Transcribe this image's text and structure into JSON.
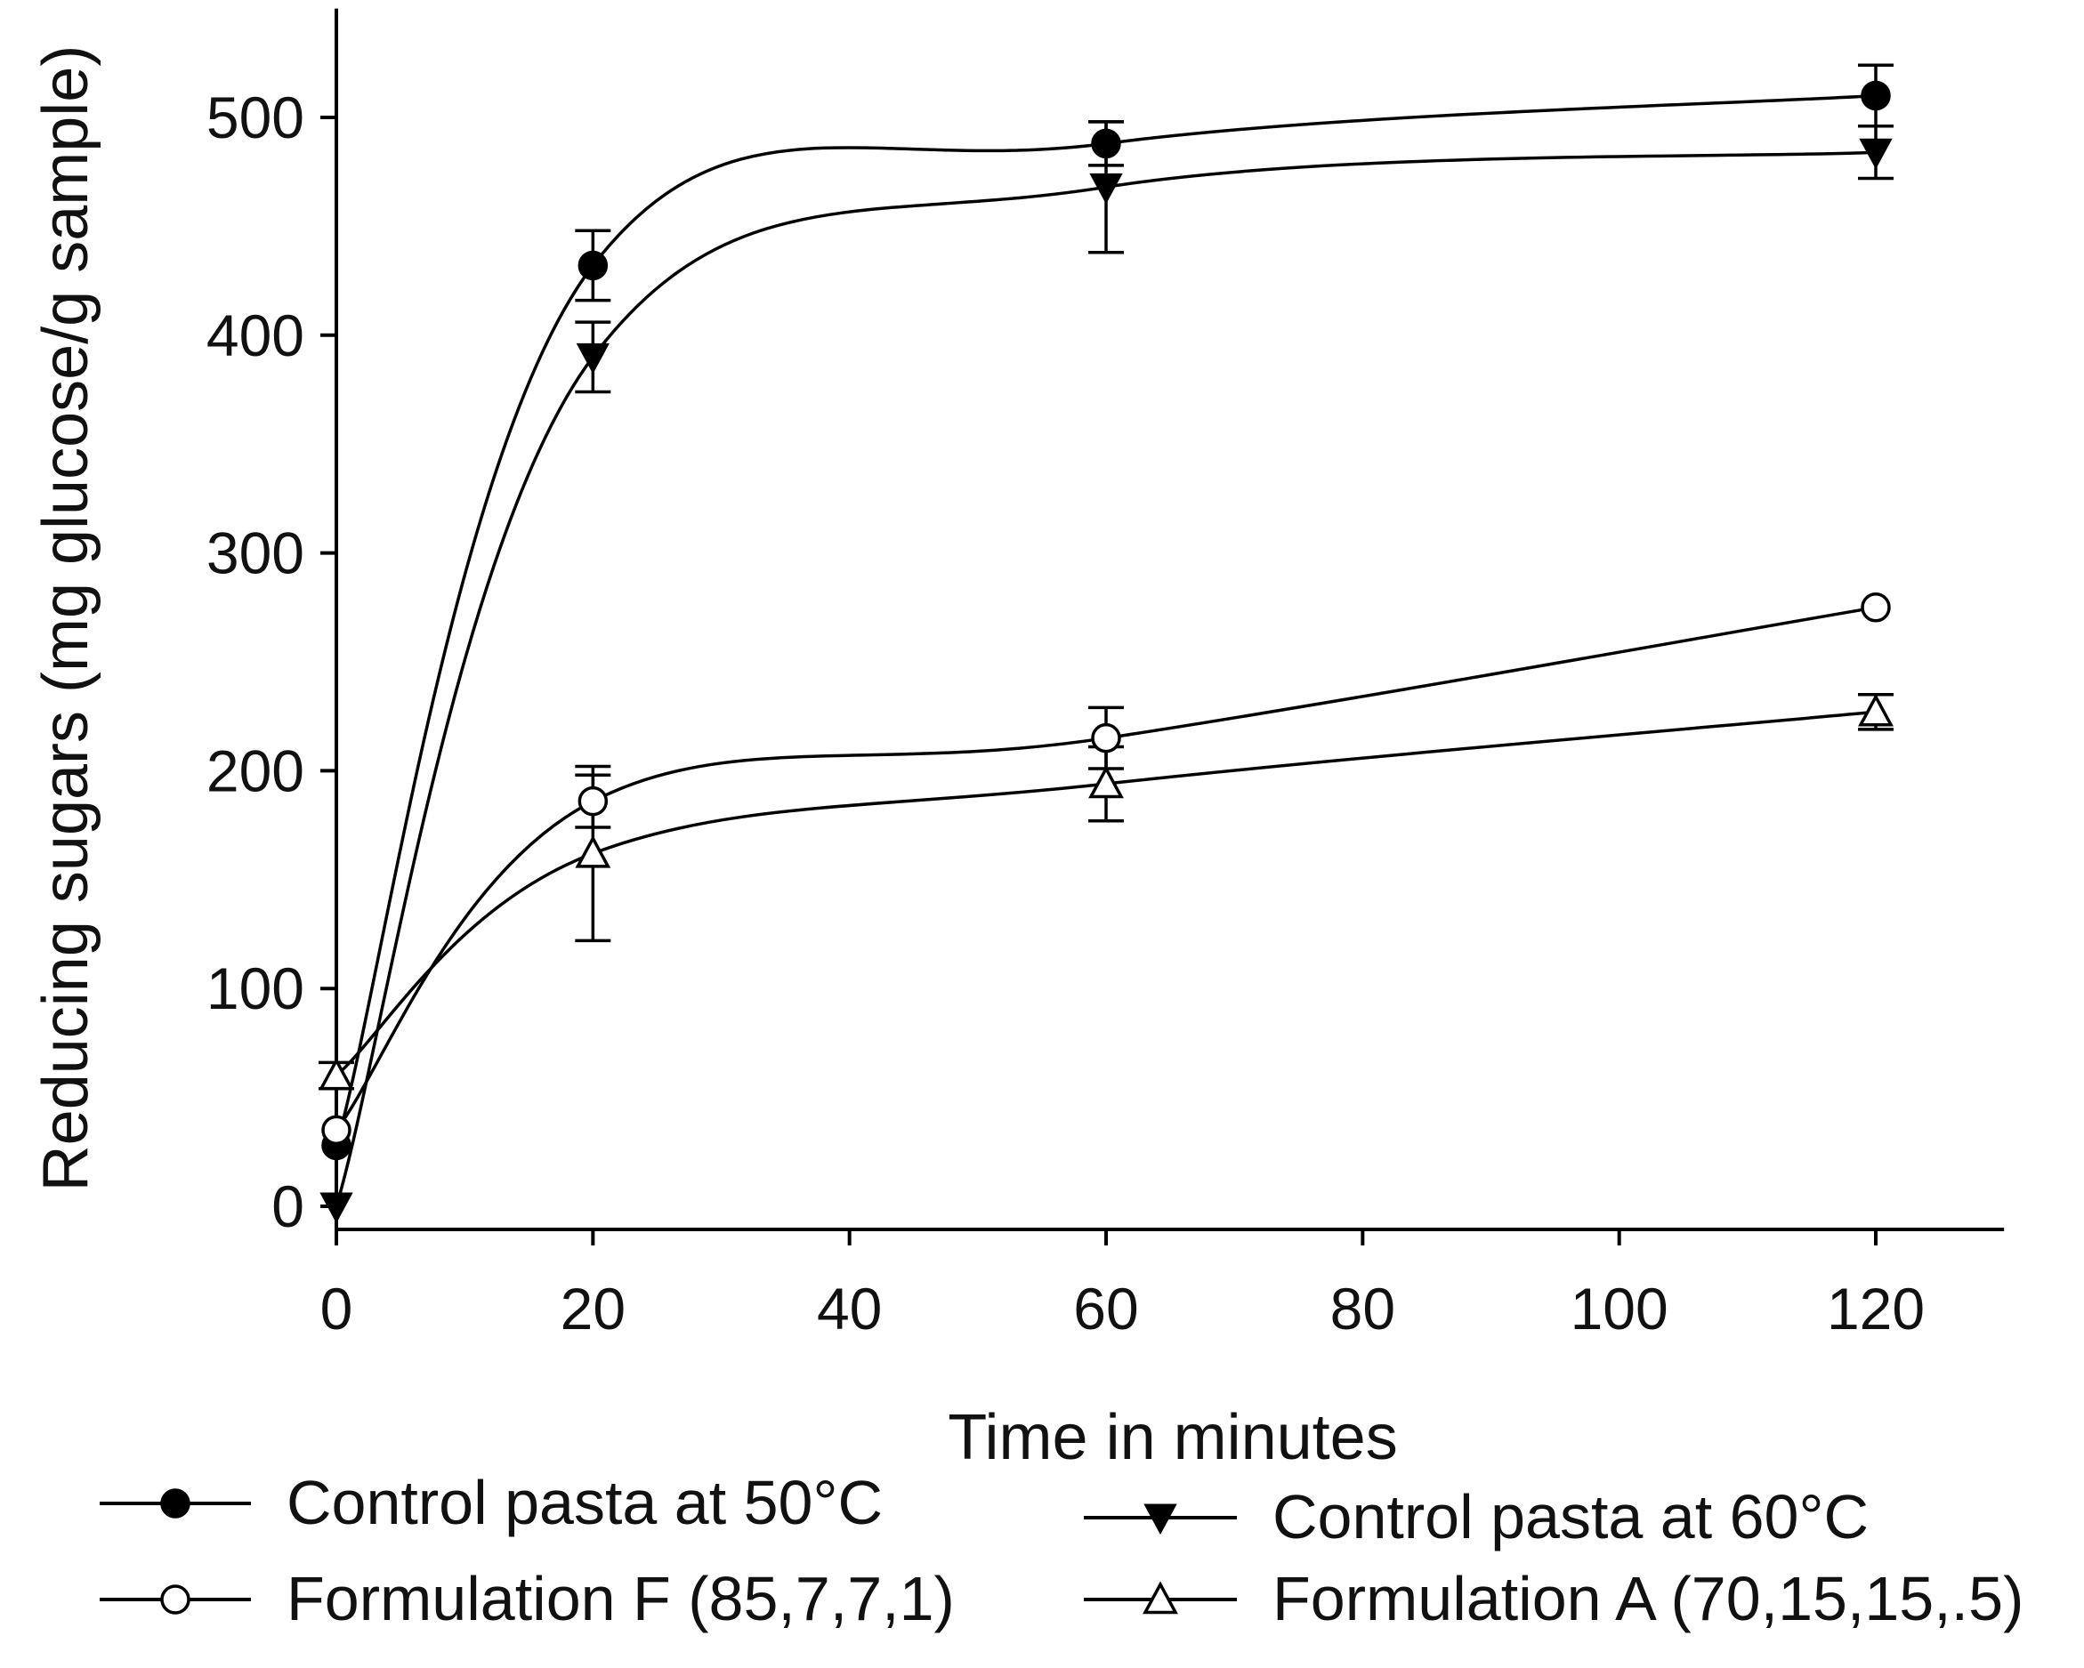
{
  "chart_data": {
    "type": "line",
    "title": "",
    "xlabel": "Time in minutes",
    "ylabel": "Reducing sugars (mg glucose/g sample)",
    "xlim": [
      0,
      130
    ],
    "ylim": [
      0,
      550
    ],
    "x_ticks": [
      0,
      20,
      40,
      60,
      80,
      100,
      120
    ],
    "y_ticks": [
      0,
      100,
      200,
      300,
      400,
      500
    ],
    "x": [
      0,
      20,
      60,
      120
    ],
    "series": [
      {
        "name": "Control pasta at 50°C",
        "marker": "circle-filled",
        "values": [
          28,
          432,
          488,
          510
        ],
        "errors": [
          0,
          16,
          10,
          14
        ]
      },
      {
        "name": "Control pasta at 60°C",
        "marker": "triangle-down-filled",
        "values": [
          0,
          390,
          468,
          484
        ],
        "errors": [
          0,
          16,
          30,
          12
        ]
      },
      {
        "name": "Formulation F (85,7,7,1)",
        "marker": "circle-open",
        "values": [
          35,
          186,
          215,
          275
        ],
        "errors": [
          0,
          12,
          14,
          0
        ]
      },
      {
        "name": "Formulation A (70,15,15,.5)",
        "marker": "triangle-up-open",
        "values": [
          60,
          162,
          194,
          227
        ],
        "errors": [
          6,
          40,
          17,
          8
        ]
      }
    ],
    "grid": false,
    "legend_position": "bottom"
  }
}
